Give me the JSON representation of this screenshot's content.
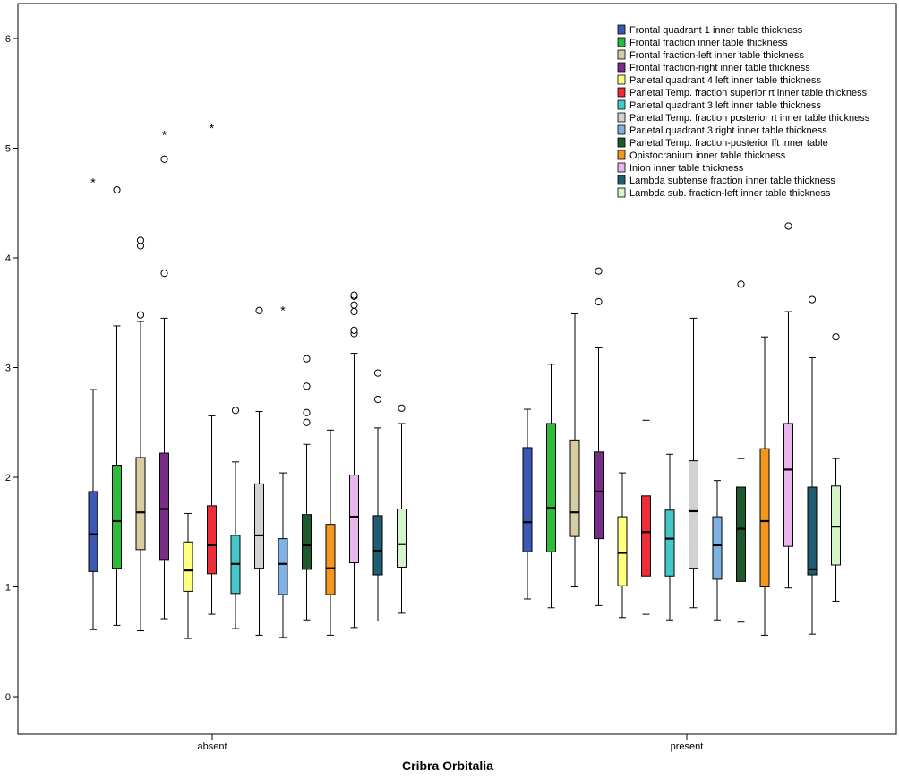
{
  "chart_data": {
    "type": "box",
    "xlabel": "Cribra Orbitalia",
    "ylabel": "",
    "ylim": [
      -0.2,
      6.3
    ],
    "yticks": [
      "0",
      "1",
      "2",
      "3",
      "4",
      "5",
      "6"
    ],
    "categories": [
      "absent",
      "present"
    ],
    "legend_position": "top-right",
    "series": [
      {
        "name": "Frontal quadrant 1 inner table thickness",
        "color": "#3b58b4",
        "groups": [
          {
            "min": 0.61,
            "q1": 1.14,
            "median": 1.48,
            "q3": 1.87,
            "max": 2.8,
            "outliers": [],
            "extremes": [
              4.7
            ]
          },
          {
            "min": 0.89,
            "q1": 1.32,
            "median": 1.59,
            "q3": 2.27,
            "max": 2.62,
            "outliers": [],
            "extremes": []
          }
        ]
      },
      {
        "name": "Frontal fraction inner table thickness",
        "color": "#2dbb3a",
        "groups": [
          {
            "min": 0.65,
            "q1": 1.17,
            "median": 1.6,
            "q3": 2.11,
            "max": 3.38,
            "outliers": [
              4.62
            ],
            "extremes": []
          },
          {
            "min": 0.81,
            "q1": 1.32,
            "median": 1.72,
            "q3": 2.49,
            "max": 3.03,
            "outliers": [],
            "extremes": []
          }
        ]
      },
      {
        "name": "Frontal fraction-left inner table thickness",
        "color": "#d6cda0",
        "groups": [
          {
            "min": 0.6,
            "q1": 1.34,
            "median": 1.68,
            "q3": 2.18,
            "max": 3.42,
            "outliers": [
              3.48,
              4.11,
              4.16
            ],
            "extremes": []
          },
          {
            "min": 1.0,
            "q1": 1.46,
            "median": 1.68,
            "q3": 2.34,
            "max": 3.49,
            "outliers": [],
            "extremes": []
          }
        ]
      },
      {
        "name": "Frontal fraction-right inner table thickness",
        "color": "#7a2d88",
        "groups": [
          {
            "min": 0.71,
            "q1": 1.25,
            "median": 1.71,
            "q3": 2.22,
            "max": 3.45,
            "outliers": [
              3.86,
              4.9
            ],
            "extremes": [
              5.13
            ]
          },
          {
            "min": 0.83,
            "q1": 1.44,
            "median": 1.87,
            "q3": 2.23,
            "max": 3.18,
            "outliers": [
              3.6,
              3.88
            ],
            "extremes": []
          }
        ]
      },
      {
        "name": "Parietal quadrant 4 left inner table thickness",
        "color": "#ffff80",
        "groups": [
          {
            "min": 0.53,
            "q1": 0.96,
            "median": 1.15,
            "q3": 1.41,
            "max": 1.67,
            "outliers": [],
            "extremes": []
          },
          {
            "min": 0.72,
            "q1": 1.01,
            "median": 1.31,
            "q3": 1.64,
            "max": 2.04,
            "outliers": [],
            "extremes": []
          }
        ]
      },
      {
        "name": "Parietal Temp. fraction superior rt inner table thickness",
        "color": "#ee2c3a",
        "groups": [
          {
            "min": 0.75,
            "q1": 1.12,
            "median": 1.38,
            "q3": 1.74,
            "max": 2.56,
            "outliers": [],
            "extremes": [
              5.19
            ]
          },
          {
            "min": 0.75,
            "q1": 1.1,
            "median": 1.5,
            "q3": 1.83,
            "max": 2.52,
            "outliers": [],
            "extremes": []
          }
        ]
      },
      {
        "name": "Parietal quadrant 3 left inner table thickness",
        "color": "#45c7c9",
        "groups": [
          {
            "min": 0.62,
            "q1": 0.94,
            "median": 1.21,
            "q3": 1.47,
            "max": 2.14,
            "outliers": [
              2.61
            ],
            "extremes": []
          },
          {
            "min": 0.7,
            "q1": 1.1,
            "median": 1.44,
            "q3": 1.7,
            "max": 2.21,
            "outliers": [],
            "extremes": []
          }
        ]
      },
      {
        "name": "Parietal Temp. fraction posterior rt inner table thickness",
        "color": "#d2d2d2",
        "groups": [
          {
            "min": 0.56,
            "q1": 1.17,
            "median": 1.47,
            "q3": 1.94,
            "max": 2.6,
            "outliers": [
              3.52
            ],
            "extremes": []
          },
          {
            "min": 0.81,
            "q1": 1.17,
            "median": 1.69,
            "q3": 2.15,
            "max": 3.45,
            "outliers": [],
            "extremes": []
          }
        ]
      },
      {
        "name": "Parietal quadrant 3 right inner table thickness",
        "color": "#7eb2e4",
        "groups": [
          {
            "min": 0.54,
            "q1": 0.93,
            "median": 1.21,
            "q3": 1.44,
            "max": 2.04,
            "outliers": [],
            "extremes": [
              3.53
            ]
          },
          {
            "min": 0.7,
            "q1": 1.07,
            "median": 1.38,
            "q3": 1.64,
            "max": 1.97,
            "outliers": [],
            "extremes": []
          }
        ]
      },
      {
        "name": "Parietal Temp. fraction-posterior lft inner table",
        "color": "#1c5a2c",
        "groups": [
          {
            "min": 0.7,
            "q1": 1.16,
            "median": 1.38,
            "q3": 1.66,
            "max": 2.3,
            "outliers": [
              2.5,
              2.59,
              2.83,
              3.08
            ],
            "extremes": []
          },
          {
            "min": 0.68,
            "q1": 1.05,
            "median": 1.53,
            "q3": 1.91,
            "max": 2.17,
            "outliers": [
              3.76
            ],
            "extremes": []
          }
        ]
      },
      {
        "name": "Opistocranium inner table thickness",
        "color": "#f5961f",
        "groups": [
          {
            "min": 0.56,
            "q1": 0.93,
            "median": 1.17,
            "q3": 1.57,
            "max": 2.43,
            "outliers": [],
            "extremes": []
          },
          {
            "min": 0.56,
            "q1": 1.0,
            "median": 1.6,
            "q3": 2.26,
            "max": 3.28,
            "outliers": [],
            "extremes": []
          }
        ]
      },
      {
        "name": "Inion inner table thickness",
        "color": "#e8b6ec",
        "groups": [
          {
            "min": 0.63,
            "q1": 1.22,
            "median": 1.64,
            "q3": 2.02,
            "max": 3.13,
            "outliers": [
              3.31,
              3.34,
              3.51,
              3.57,
              3.65,
              3.66
            ],
            "extremes": []
          },
          {
            "min": 0.99,
            "q1": 1.37,
            "median": 2.07,
            "q3": 2.49,
            "max": 3.51,
            "outliers": [
              4.29
            ],
            "extremes": []
          }
        ]
      },
      {
        "name": "Lambda subtense fraction inner table thickness",
        "color": "#1f5d72",
        "groups": [
          {
            "min": 0.69,
            "q1": 1.11,
            "median": 1.33,
            "q3": 1.65,
            "max": 2.45,
            "outliers": [
              2.71,
              2.95
            ],
            "extremes": []
          },
          {
            "min": 0.57,
            "q1": 1.11,
            "median": 1.16,
            "q3": 1.91,
            "max": 3.09,
            "outliers": [
              3.62
            ],
            "extremes": []
          }
        ]
      },
      {
        "name": "Lambda sub. fraction-left inner table thickness",
        "color": "#d4f5c8",
        "groups": [
          {
            "min": 0.76,
            "q1": 1.18,
            "median": 1.39,
            "q3": 1.71,
            "max": 2.49,
            "outliers": [
              2.63
            ],
            "extremes": []
          },
          {
            "min": 0.87,
            "q1": 1.2,
            "median": 1.55,
            "q3": 1.92,
            "max": 2.17,
            "outliers": [
              3.28
            ],
            "extremes": []
          }
        ]
      }
    ]
  }
}
